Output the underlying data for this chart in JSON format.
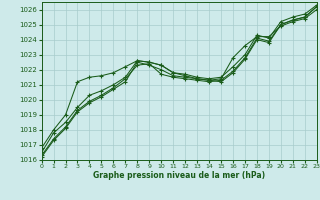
{
  "xlabel": "Graphe pression niveau de la mer (hPa)",
  "bg_color": "#ceeaea",
  "grid_color": "#a8cccc",
  "line_color": "#1a5c1a",
  "marker_color": "#1a5c1a",
  "xlim": [
    0,
    23
  ],
  "ylim": [
    1016,
    1026.5
  ],
  "yticks": [
    1016,
    1017,
    1018,
    1019,
    1020,
    1021,
    1022,
    1023,
    1024,
    1025,
    1026
  ],
  "xticks": [
    0,
    1,
    2,
    3,
    4,
    5,
    6,
    7,
    8,
    9,
    10,
    11,
    12,
    13,
    14,
    15,
    16,
    17,
    18,
    19,
    20,
    21,
    22,
    23
  ],
  "series": [
    [
      1016.2,
      1017.3,
      1018.1,
      1019.2,
      1019.8,
      1020.2,
      1020.7,
      1021.2,
      1022.5,
      1022.3,
      1022.0,
      1021.6,
      1021.5,
      1021.4,
      1021.3,
      1021.2,
      1021.8,
      1022.7,
      1024.0,
      1023.8,
      1025.0,
      1025.3,
      1025.5,
      1026.2
    ],
    [
      1016.3,
      1017.4,
      1018.2,
      1019.3,
      1019.9,
      1020.3,
      1020.8,
      1021.4,
      1022.3,
      1022.4,
      1021.7,
      1021.5,
      1021.4,
      1021.3,
      1021.2,
      1021.3,
      1021.9,
      1022.8,
      1024.1,
      1023.9,
      1025.0,
      1025.3,
      1025.5,
      1026.2
    ],
    [
      1016.5,
      1017.8,
      1018.5,
      1019.5,
      1020.3,
      1020.6,
      1021.0,
      1021.5,
      1022.6,
      1022.5,
      1022.3,
      1021.8,
      1021.7,
      1021.5,
      1021.4,
      1021.5,
      1022.2,
      1023.0,
      1024.3,
      1024.1,
      1025.2,
      1025.5,
      1025.7,
      1026.3
    ],
    [
      1016.8,
      1018.0,
      1019.0,
      1021.2,
      1021.5,
      1021.6,
      1021.8,
      1022.2,
      1022.6,
      1022.5,
      1022.3,
      1021.8,
      1021.6,
      1021.4,
      1021.3,
      1021.4,
      1022.8,
      1023.6,
      1024.2,
      1024.2,
      1024.9,
      1025.2,
      1025.4,
      1026.0
    ]
  ]
}
